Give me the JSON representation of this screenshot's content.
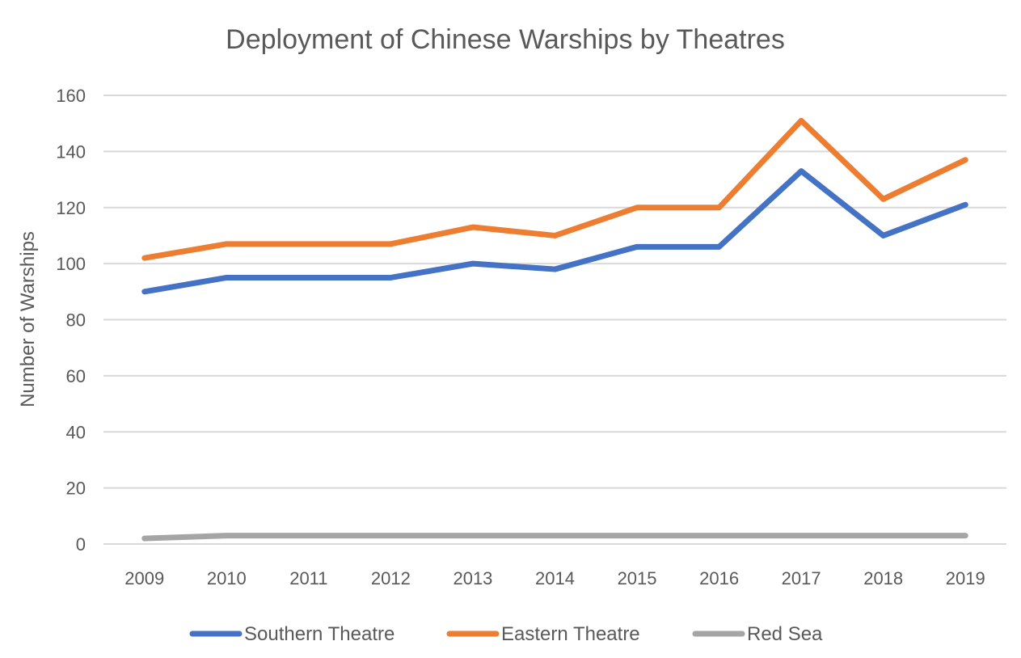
{
  "chart_data": {
    "type": "line",
    "title": "Deployment of Chinese Warships by Theatres",
    "xlabel": "",
    "ylabel": "Number of Warships",
    "x": [
      "2009",
      "2010",
      "2011",
      "2012",
      "2013",
      "2014",
      "2015",
      "2016",
      "2017",
      "2018",
      "2019"
    ],
    "ylim": [
      0,
      160
    ],
    "yticks": [
      0,
      20,
      40,
      60,
      80,
      100,
      120,
      140,
      160
    ],
    "grid": true,
    "legend_position": "bottom",
    "series": [
      {
        "name": "Southern Theatre",
        "color": "#4472c4",
        "values": [
          90,
          95,
          95,
          95,
          100,
          98,
          106,
          106,
          133,
          110,
          121
        ]
      },
      {
        "name": "Eastern Theatre",
        "color": "#ed7d31",
        "values": [
          102,
          107,
          107,
          107,
          113,
          110,
          120,
          120,
          151,
          123,
          137
        ]
      },
      {
        "name": "Red Sea",
        "color": "#a5a5a5",
        "values": [
          2,
          3,
          3,
          3,
          3,
          3,
          3,
          3,
          3,
          3,
          3
        ]
      }
    ]
  }
}
